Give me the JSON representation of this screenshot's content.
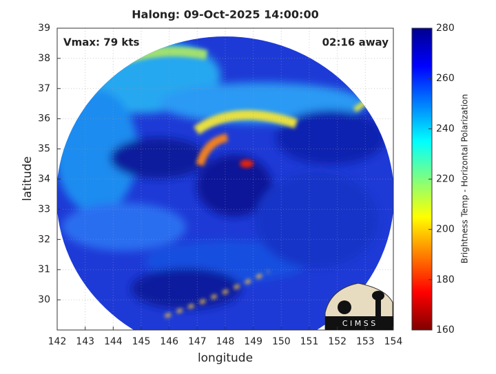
{
  "chart_data": {
    "type": "image-map",
    "title": "Halong: 09-Oct-2025 14:00:00",
    "annotations": [
      "Vmax: 79 kts",
      "02:16 away"
    ],
    "x_label": "longitude",
    "y_label": "latitude",
    "xlim": [
      142,
      154
    ],
    "xticks": [
      142,
      143,
      144,
      145,
      146,
      147,
      148,
      149,
      150,
      151,
      152,
      153,
      154
    ],
    "ylim": [
      29,
      39
    ],
    "yticks": [
      30,
      31,
      32,
      33,
      34,
      35,
      36,
      37,
      38,
      39
    ],
    "grid": true,
    "colorbar": {
      "label": "Brightness Temp - Horizontal Polarization",
      "colormap": "jet",
      "lim": [
        160,
        280
      ],
      "ticks": [
        160,
        180,
        200,
        220,
        240,
        260,
        280
      ]
    },
    "logo": "C I M S S"
  }
}
